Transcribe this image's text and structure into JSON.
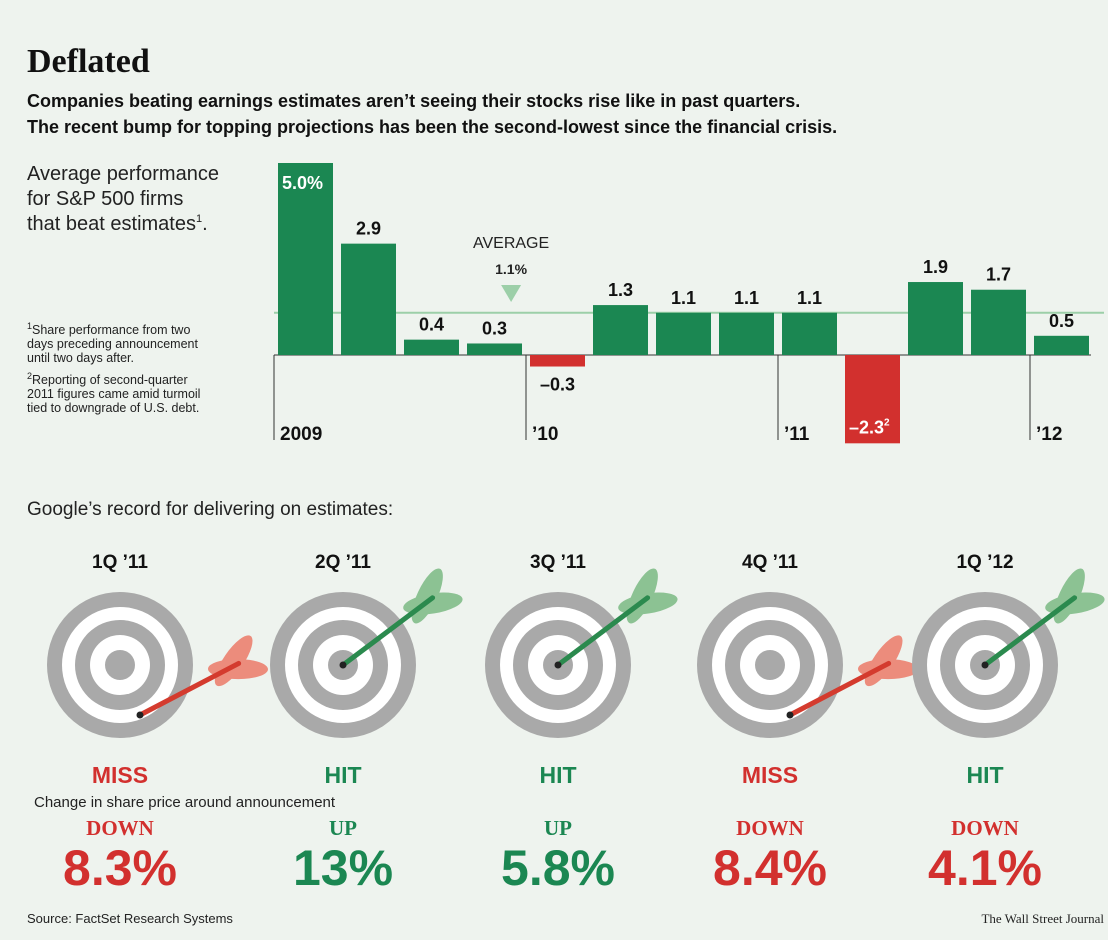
{
  "chart_data": {
    "type": "bar",
    "title": "Deflated",
    "subtitle": [
      "Companies beating earnings estimates aren’t seeing their stocks rise like in past quarters.",
      "The recent bump for topping projections has been the second-lowest since the financial crisis."
    ],
    "description": {
      "lines": [
        "Average performance",
        "for S&P 500 firms",
        "that beat estimates"
      ],
      "note_mark": "1",
      "tail": "."
    },
    "footnotes": [
      {
        "mark": "1",
        "lines": [
          "Share performance from two",
          "days preceding announcement",
          "until two days after."
        ]
      },
      {
        "mark": "2",
        "lines": [
          "Reporting of second-quarter",
          "2011 figures came amid turmoil",
          "tied to downgrade of U.S. debt."
        ]
      }
    ],
    "categories": [
      "2009",
      null,
      null,
      null,
      "’10",
      null,
      null,
      null,
      "’11",
      null,
      null,
      null,
      "’12"
    ],
    "values": [
      5.0,
      2.9,
      0.4,
      0.3,
      -0.3,
      1.3,
      1.1,
      1.1,
      1.1,
      -2.3,
      1.9,
      1.7,
      0.5
    ],
    "value_labels": [
      "5.0%",
      "2.9",
      "0.4",
      "0.3",
      "–0.3",
      "1.3",
      "1.1",
      "1.1",
      "1.1",
      "–2.3",
      "1.9",
      "1.7",
      "0.5"
    ],
    "value_label_notes": [
      null,
      null,
      null,
      null,
      null,
      null,
      null,
      null,
      null,
      "2",
      null,
      null,
      null
    ],
    "label_inside": [
      true,
      false,
      false,
      false,
      false,
      false,
      false,
      false,
      false,
      true,
      false,
      false,
      false
    ],
    "positive_color": "#1b8752",
    "negative_color": "#d2302e",
    "ylim": [
      -2.5,
      5.0
    ],
    "average": {
      "label": "AVERAGE",
      "value": 1.1,
      "value_label": "1.1%",
      "color": "#9ccfa8"
    }
  },
  "google": {
    "heading": "Google’s record for delivering on estimates:",
    "note": "Change in share price around announcement",
    "items": [
      {
        "quarter": "1Q ’11",
        "result": "MISS",
        "hit": false,
        "direction": "DOWN",
        "change": "8.3%",
        "color": "#d2302e"
      },
      {
        "quarter": "2Q ’11",
        "result": "HIT",
        "hit": true,
        "direction": "UP",
        "change": "13%",
        "color": "#1b8752"
      },
      {
        "quarter": "3Q ’11",
        "result": "HIT",
        "hit": true,
        "direction": "UP",
        "change": "5.8%",
        "color": "#1b8752"
      },
      {
        "quarter": "4Q ’11",
        "result": "MISS",
        "hit": false,
        "direction": "DOWN",
        "change": "8.4%",
        "color": "#d2302e"
      },
      {
        "quarter": "1Q ’12",
        "result": "HIT",
        "hit": true,
        "direction": "DOWN",
        "change": "4.1%",
        "color": "#d2302e"
      }
    ]
  },
  "source": "Source: FactSet Research Systems",
  "credit": "The Wall Street Journal"
}
